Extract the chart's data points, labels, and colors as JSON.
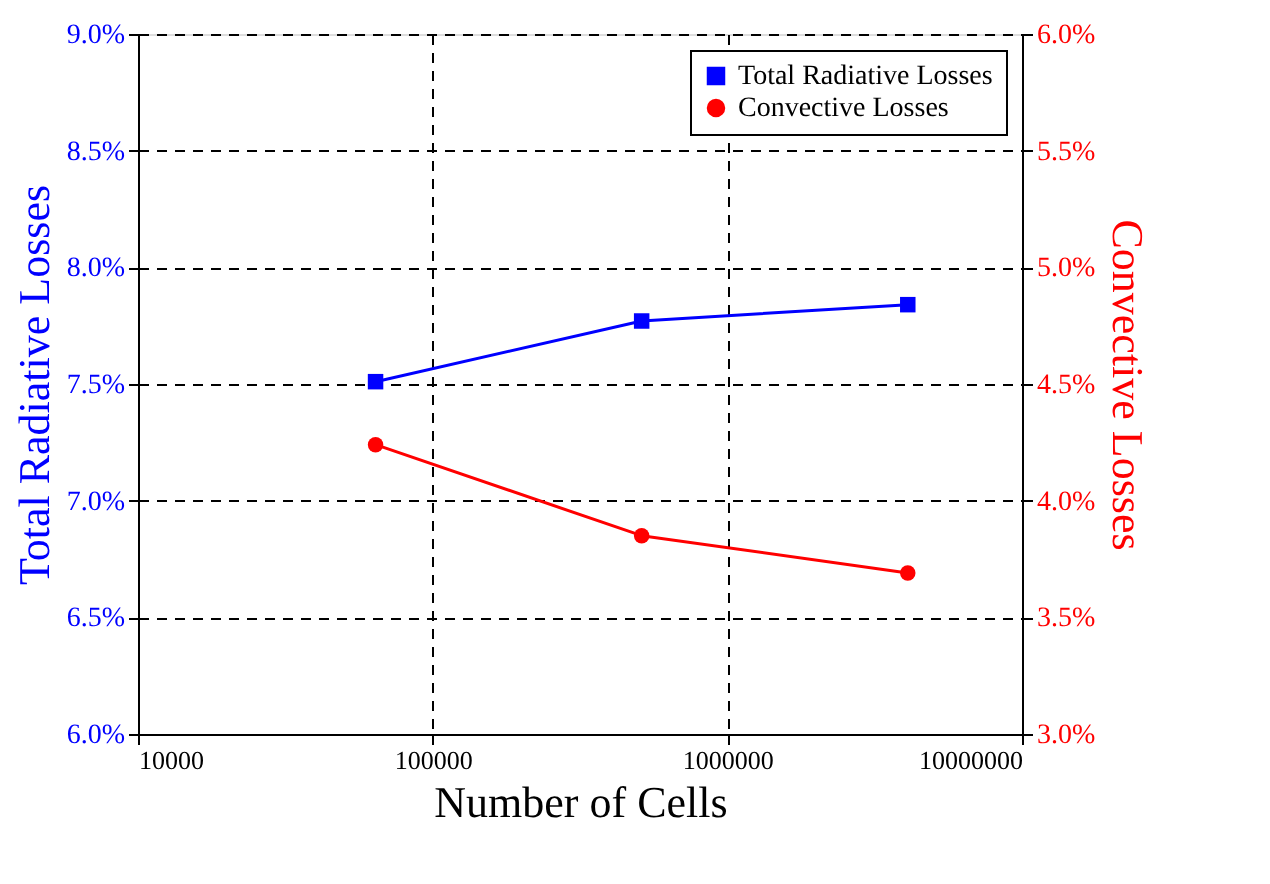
{
  "chart_data": {
    "type": "line",
    "xlabel": "Number of Cells",
    "ylabel": "Total Radiative Losses",
    "y2label": "Convective Losses",
    "x": [
      64000,
      512000,
      4096000
    ],
    "series": [
      {
        "name": "Total Radiative Losses",
        "color": "#0000ff",
        "values": [
          7.51,
          7.77,
          7.84
        ],
        "marker": "square"
      },
      {
        "name": "Convective Losses",
        "color": "#ff0000",
        "values": [
          4.24,
          3.85,
          3.69
        ],
        "marker": "circle",
        "axis": "y2"
      }
    ],
    "log": "x",
    "xlim": [
      10000,
      10000000
    ],
    "xticks": [
      10000,
      100000,
      1000000,
      10000000
    ],
    "ylim": [
      6.0,
      9.0
    ],
    "yticks": [
      {
        "value": 6.0,
        "label": "6.0%"
      },
      {
        "value": 6.5,
        "label": "6.5%"
      },
      {
        "value": 7.0,
        "label": "7.0%"
      },
      {
        "value": 7.5,
        "label": "7.5%"
      },
      {
        "value": 8.0,
        "label": "8.0%"
      },
      {
        "value": 8.5,
        "label": "8.5%"
      },
      {
        "value": 9.0,
        "label": "9.0%"
      }
    ],
    "y2lim": [
      3.0,
      6.0
    ],
    "y2ticks": [
      {
        "value": 3.0,
        "label": "3.0%"
      },
      {
        "value": 3.5,
        "label": "3.5%"
      },
      {
        "value": 4.0,
        "label": "4.0%"
      },
      {
        "value": 4.5,
        "label": "4.5%"
      },
      {
        "value": 5.0,
        "label": "5.0%"
      },
      {
        "value": 5.5,
        "label": "5.5%"
      },
      {
        "value": 6.0,
        "label": "6.0%"
      }
    ],
    "grid": true,
    "legend": "top right",
    "line_style": "solid"
  }
}
